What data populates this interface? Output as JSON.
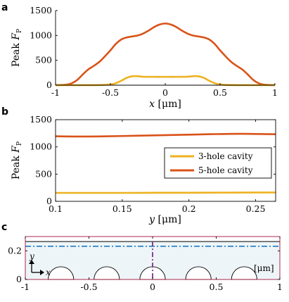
{
  "colors": {
    "three_hole": "#EDB120",
    "five_hole": "#D95319",
    "panel_c_axis": "#a3133a",
    "cavity_fill": "#eef5f8",
    "dashdot_line": "#1f7bc4",
    "center_line": "#7e2f8e"
  },
  "chart_data": [
    {
      "panel": "a",
      "type": "line",
      "ylabel": "Peak F_P",
      "ylabel_main": "Peak ",
      "ylabel_var": "F",
      "ylabel_sub": "P",
      "xlabel": "x [μm]",
      "xlabel_var": "x",
      "xlabel_unit": "[μm]",
      "xlim": [
        -1,
        1
      ],
      "ylim": [
        0,
        1500
      ],
      "xticks": [
        -1,
        -0.5,
        0,
        0.5,
        1
      ],
      "xtick_labels": [
        "-1",
        "-0.5",
        "0",
        "0.5",
        "1"
      ],
      "yticks": [
        0,
        500,
        1000,
        1500
      ],
      "ytick_labels": [
        "0",
        "500",
        "1000",
        "1500"
      ],
      "series": [
        {
          "x": [
            -1.0,
            -0.95,
            -0.9,
            -0.85,
            -0.8,
            -0.75,
            -0.7,
            -0.65,
            -0.6,
            -0.55,
            -0.5,
            -0.45,
            -0.4,
            -0.35,
            -0.3,
            -0.25,
            -0.2,
            -0.15,
            -0.1,
            -0.05,
            0.0,
            0.05,
            0.1,
            0.15,
            0.2,
            0.25,
            0.3,
            0.35,
            0.4,
            0.45,
            0.5,
            0.55,
            0.6,
            0.65,
            0.7,
            0.75,
            0.8,
            0.85,
            0.9,
            0.95,
            1.0
          ],
          "y": [
            2,
            4,
            12,
            40,
            110,
            220,
            320,
            390,
            470,
            580,
            700,
            830,
            920,
            960,
            980,
            1000,
            1040,
            1100,
            1170,
            1220,
            1240,
            1220,
            1170,
            1100,
            1040,
            1000,
            980,
            960,
            920,
            830,
            700,
            580,
            470,
            390,
            320,
            220,
            110,
            40,
            12,
            4,
            2
          ]
        },
        {
          "x": [
            -1.0,
            -0.8,
            -0.7,
            -0.6,
            -0.55,
            -0.5,
            -0.45,
            -0.4,
            -0.35,
            -0.3,
            -0.25,
            -0.2,
            -0.1,
            0.0,
            0.1,
            0.2,
            0.25,
            0.3,
            0.35,
            0.4,
            0.45,
            0.5,
            0.55,
            0.6,
            0.7,
            0.8,
            1.0
          ],
          "y": [
            0,
            0,
            1,
            3,
            6,
            15,
            40,
            90,
            150,
            180,
            180,
            170,
            168,
            168,
            168,
            170,
            180,
            180,
            150,
            90,
            40,
            15,
            6,
            3,
            1,
            0,
            0
          ]
        }
      ]
    },
    {
      "panel": "b",
      "type": "line",
      "ylabel": "Peak F_P",
      "ylabel_main": "Peak ",
      "ylabel_var": "F",
      "ylabel_sub": "P",
      "xlabel": "y [μm]",
      "xlabel_var": "y",
      "xlabel_unit": "[μm]",
      "xlim": [
        0.1,
        0.265
      ],
      "ylim": [
        0,
        1500
      ],
      "xticks": [
        0.1,
        0.15,
        0.2,
        0.25
      ],
      "xtick_labels": [
        "0.1",
        "0.15",
        "0.2",
        "0.25"
      ],
      "yticks": [
        0,
        500,
        1000,
        1500
      ],
      "ytick_labels": [
        "0",
        "500",
        "1000",
        "1500"
      ],
      "legend": "center-right",
      "series": [
        {
          "name": "3-hole cavity",
          "x": [
            0.1,
            0.125,
            0.15,
            0.175,
            0.2,
            0.225,
            0.25,
            0.265
          ],
          "y": [
            155,
            155,
            155,
            157,
            158,
            160,
            162,
            162
          ]
        },
        {
          "name": "5-hole cavity",
          "x": [
            0.1,
            0.12,
            0.14,
            0.16,
            0.18,
            0.2,
            0.22,
            0.24,
            0.265
          ],
          "y": [
            1195,
            1190,
            1195,
            1205,
            1215,
            1225,
            1235,
            1240,
            1232
          ]
        }
      ]
    },
    {
      "panel": "c",
      "type": "diagram",
      "xlabel": "",
      "xlim": [
        -1,
        1
      ],
      "ylim": [
        0,
        0.3
      ],
      "xticks": [
        -1,
        -0.5,
        0,
        0.5,
        1
      ],
      "xtick_labels": [
        "-1",
        "-0.5",
        "0",
        "0.5",
        "1"
      ],
      "yticks": [
        0,
        0.2
      ],
      "ytick_labels": [
        "0",
        "0.2"
      ],
      "slab_top": 0.265,
      "dashdot_level": 0.232,
      "hole_centers": [
        -0.72,
        -0.36,
        0,
        0.36,
        0.72
      ],
      "hole_radius": 0.1,
      "axis_glyph_y": "y",
      "axis_glyph_x": "x",
      "unit_label": "[μm]"
    }
  ]
}
